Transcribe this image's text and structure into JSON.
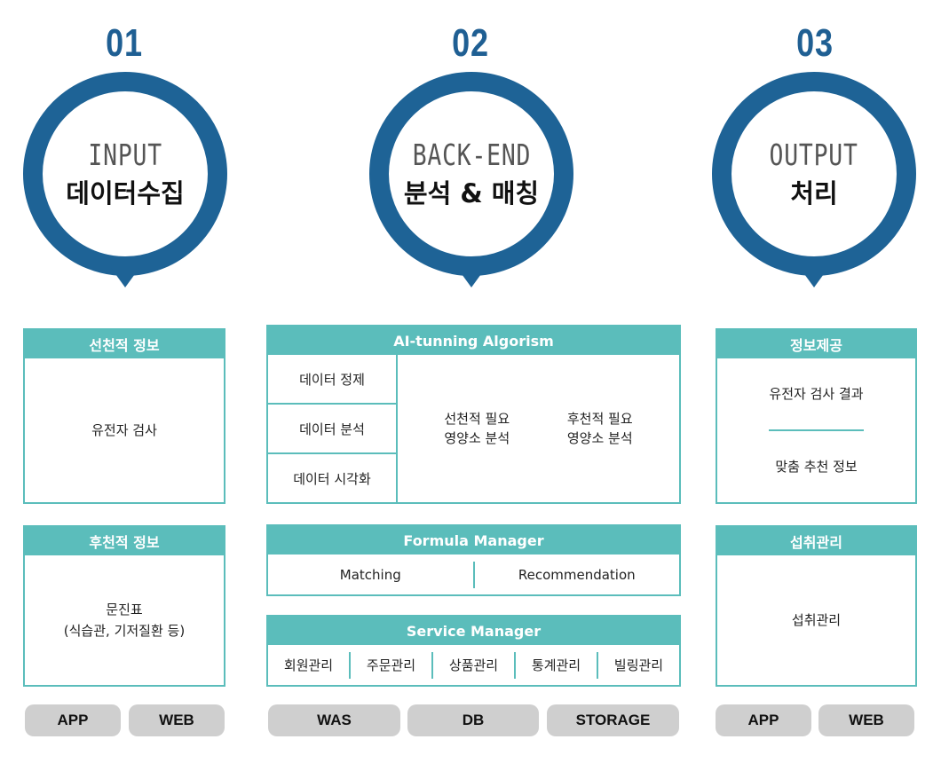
{
  "stages": [
    {
      "number": "01",
      "title_en": "INPUT",
      "title_ko": "데이터수집"
    },
    {
      "number": "02",
      "title_en": "BACK-END",
      "title_ko": "분석 & 매칭"
    },
    {
      "number": "03",
      "title_en": "OUTPUT",
      "title_ko": "처리"
    }
  ],
  "input": {
    "prior_info": {
      "title": "선천적 정보",
      "body": "유전자 검사"
    },
    "acquired_info": {
      "title": "후천적 정보",
      "body_line1": "문진표",
      "body_line2": "(식습관, 기저질환 등)"
    },
    "platforms": [
      "APP",
      "WEB"
    ]
  },
  "backend": {
    "algorithm": {
      "title": "AI-tunning Algorism",
      "steps": [
        "데이터 정제",
        "데이터 분석",
        "데이터 시각화"
      ],
      "analysis_left_line1": "선천적 필요",
      "analysis_left_line2": "영양소 분석",
      "analysis_right_line1": "후천적 필요",
      "analysis_right_line2": "영양소 분석"
    },
    "formula": {
      "title": "Formula Manager",
      "items": [
        "Matching",
        "Recommendation"
      ]
    },
    "service": {
      "title": "Service Manager",
      "items": [
        "회원관리",
        "주문관리",
        "상품관리",
        "통계관리",
        "빌링관리"
      ]
    },
    "infrastructure": [
      "WAS",
      "DB",
      "STORAGE"
    ]
  },
  "output": {
    "info_provision": {
      "title": "정보제공",
      "items": [
        "유전자 검사 결과",
        "맞춤 추천 정보"
      ]
    },
    "intake": {
      "title": "섭취관리",
      "body": "섭취관리"
    },
    "platforms": [
      "APP",
      "WEB"
    ]
  },
  "colors": {
    "ring": "#1e6396",
    "number": "#1f5f93",
    "panel": "#5bbdbb",
    "pill": "#cfcfcf"
  }
}
